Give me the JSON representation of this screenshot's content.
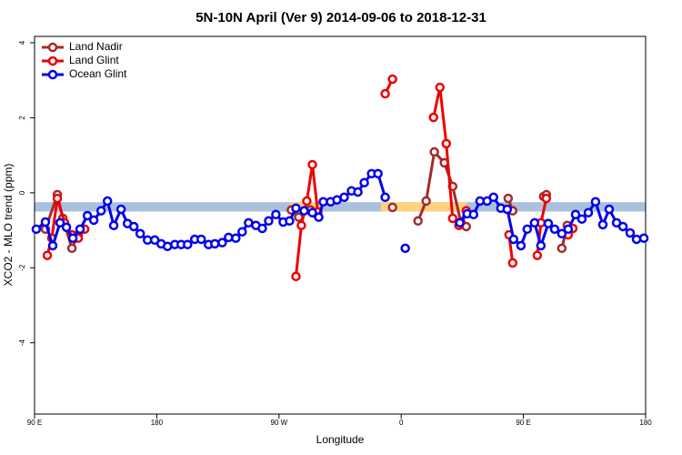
{
  "chart_data": {
    "type": "line",
    "title": "5N-10N April (Ver 9)   2014-09-06 to 2018-12-31",
    "xlabel": "Longitude",
    "ylabel": "XCO2 - MLO trend (ppm)",
    "xlim": [
      90,
      540
    ],
    "ylim": [
      -5.9,
      4.17
    ],
    "xticks": [
      {
        "value": 90,
        "label": "90 E"
      },
      180,
      {
        "value": 270,
        "label": "90 W"
      },
      {
        "value": 360,
        "label": "0"
      },
      {
        "value": 450,
        "label": "90 E"
      },
      {
        "value": 540,
        "label": "180"
      }
    ],
    "yticks": [
      -4,
      -2,
      0,
      2,
      4
    ],
    "legend": "top-left",
    "band": {
      "ylim": [
        -0.5,
        -0.25
      ],
      "color": "#a9c1df",
      "highlight_x": [
        [
          278,
          301
        ],
        [
          345,
          408
        ]
      ],
      "highlight_color": "#ffd27f"
    },
    "series": [
      {
        "name": "Land Nadir",
        "color": "#a52a2a",
        "x": [
          98.0,
          106.8,
          110.8,
          117.5,
          122.2,
          null,
          279.1,
          284.5,
          293.2,
          297.2,
          null,
          353.6,
          null,
          372.4,
          378.4,
          384.4,
          391.8,
          397.9,
          403.9,
          407.9,
          null,
          438.8,
          442.1,
          null,
          464.9,
          466.9,
          null,
          478.3,
          482.3
        ],
        "values": [
          -0.97,
          -0.05,
          -0.68,
          -1.48,
          -1.12,
          null,
          -0.46,
          -0.65,
          -0.46,
          -0.56,
          null,
          -0.39,
          null,
          -0.75,
          -0.22,
          1.09,
          0.8,
          0.17,
          -0.78,
          -0.9,
          null,
          -0.15,
          -0.48,
          null,
          -0.1,
          -0.05,
          null,
          -1.48,
          -0.87
        ]
      },
      {
        "name": "Land Glint",
        "color": "#ee0000",
        "x": [
          99.4,
          102.7,
          106.8,
          112.1,
          117.5,
          122.2,
          126.9,
          null,
          282.5,
          286.5,
          290.5,
          294.6,
          298.6,
          null,
          348.2,
          353.6,
          null,
          383.8,
          388.5,
          393.2,
          397.9,
          402.5,
          407.9,
          null,
          439.4,
          442.1,
          null,
          460.2,
          462.9,
          466.9,
          null,
          483.0,
          486.4
        ],
        "values": [
          -1.67,
          -1.21,
          -0.15,
          -0.8,
          -1.12,
          -1.21,
          -0.97,
          null,
          -2.23,
          -0.87,
          -0.22,
          0.75,
          -0.51,
          null,
          2.64,
          3.03,
          null,
          2.01,
          2.81,
          1.31,
          -0.68,
          -0.87,
          -0.48,
          null,
          -1.12,
          -1.87,
          null,
          -1.67,
          -0.8,
          -0.15,
          null,
          -1.12,
          -0.95
        ]
      },
      {
        "name": "Ocean Glint",
        "color": "#0000ee",
        "x": [
          91.3,
          98.0,
          103.4,
          108.8,
          113.5,
          118.2,
          123.5,
          128.9,
          133.6,
          139.0,
          143.7,
          148.3,
          153.7,
          158.4,
          163.1,
          167.8,
          173.2,
          178.5,
          183.2,
          187.9,
          193.3,
          198.0,
          202.7,
          208.0,
          212.7,
          218.1,
          222.8,
          228.2,
          232.9,
          238.2,
          242.9,
          247.6,
          253.0,
          257.7,
          262.4,
          267.7,
          273.1,
          277.8,
          282.5,
          288.5,
          294.6,
          299.3,
          302.6,
          308.0,
          312.7,
          318.0,
          323.4,
          328.1,
          332.8,
          338.2,
          342.9,
          348.2,
          null,
          363.0,
          null,
          403.2,
          408.6,
          413.3,
          418.0,
          423.3,
          428.0,
          433.4,
          438.1,
          442.8,
          448.2,
          452.8,
          458.2,
          462.9,
          468.3,
          473.0,
          478.3,
          483.0,
          488.4,
          493.1,
          497.8,
          503.1,
          508.5,
          513.2,
          518.6,
          523.3,
          528.6,
          533.3,
          538.7
        ],
        "values": [
          -0.97,
          -0.78,
          -1.41,
          -0.8,
          -0.92,
          -1.21,
          -0.97,
          -0.61,
          -0.73,
          -0.48,
          -0.22,
          -0.87,
          -0.44,
          -0.82,
          -0.9,
          -1.09,
          -1.26,
          -1.26,
          -1.36,
          -1.43,
          -1.38,
          -1.38,
          -1.38,
          -1.24,
          -1.24,
          -1.38,
          -1.36,
          -1.33,
          -1.19,
          -1.21,
          -1.04,
          -0.8,
          -0.87,
          -0.95,
          -0.75,
          -0.58,
          -0.78,
          -0.75,
          -0.41,
          -0.48,
          -0.53,
          -0.65,
          -0.24,
          -0.24,
          -0.19,
          -0.12,
          0.05,
          0.02,
          0.27,
          0.51,
          0.51,
          -0.12,
          null,
          -1.48,
          null,
          -0.8,
          -0.56,
          -0.58,
          -0.22,
          -0.22,
          -0.12,
          -0.41,
          -0.44,
          -1.24,
          -1.41,
          -0.97,
          -0.8,
          -1.41,
          -0.82,
          -0.97,
          -1.09,
          -0.97,
          -0.58,
          -0.7,
          -0.53,
          -0.24,
          -0.85,
          -0.44,
          -0.8,
          -0.9,
          -1.07,
          -1.24,
          -1.21
        ]
      }
    ]
  }
}
